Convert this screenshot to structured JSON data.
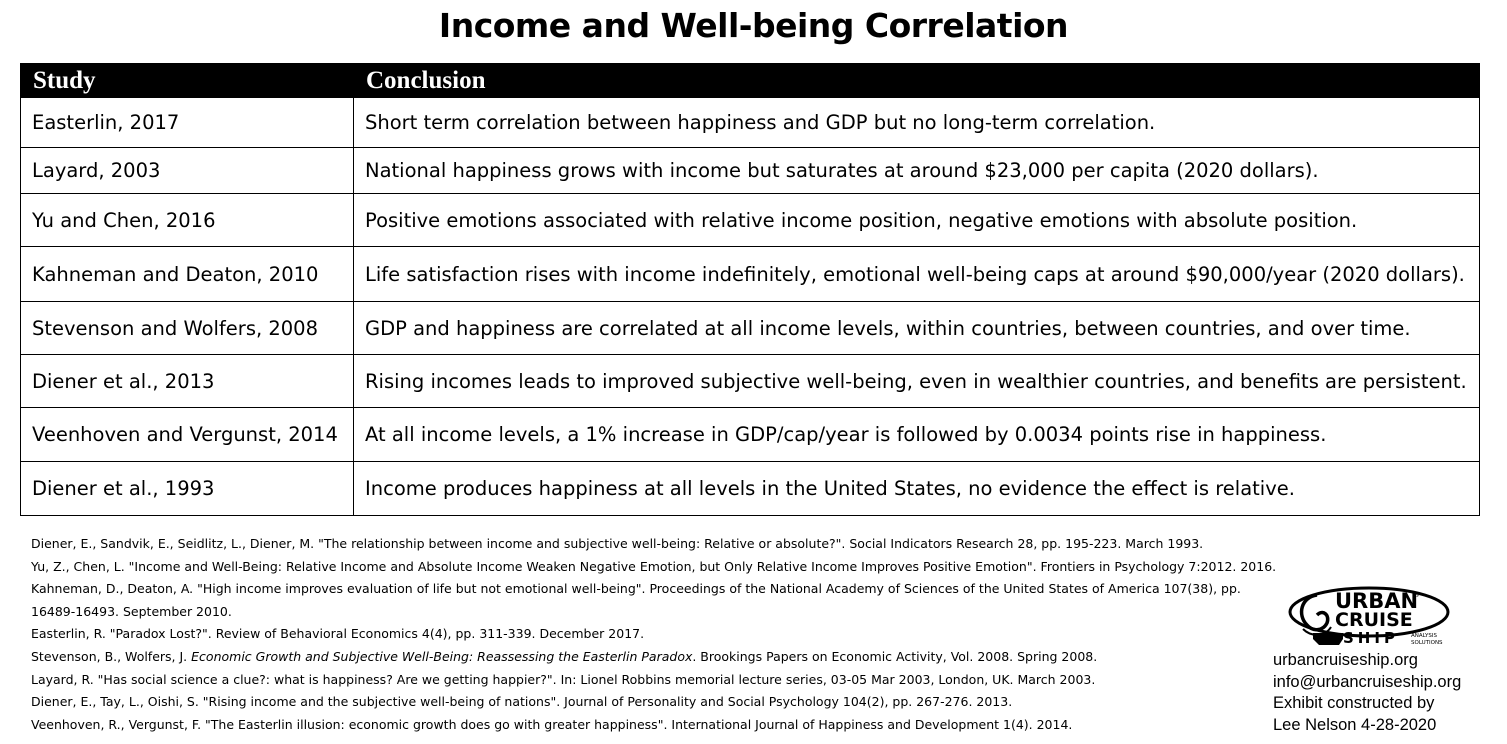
{
  "title": "Income and Well-being Correlation",
  "table": {
    "headers": [
      "Study",
      "Conclusion"
    ],
    "rows": [
      {
        "study": "Easterlin, 2017",
        "conclusion": "Short term correlation between happiness and GDP but no long-term correlation."
      },
      {
        "study": "Layard, 2003",
        "conclusion": "National happiness grows with income but saturates at around $23,000 per capita (2020 dollars)."
      },
      {
        "study": "Yu and Chen, 2016",
        "conclusion": "Positive emotions associated with relative income position, negative emotions with absolute position."
      },
      {
        "study": "Kahneman and Deaton, 2010",
        "conclusion": "Life satisfaction rises with income indefinitely, emotional well-being caps at around $90,000/year (2020 dollars)."
      },
      {
        "study": "Stevenson and Wolfers, 2008",
        "conclusion": "GDP and happiness are correlated at all income levels, within countries, between countries, and over time."
      },
      {
        "study": "Diener et al., 2013",
        "conclusion": "Rising incomes leads to improved subjective well-being, even in wealthier countries, and benefits are persistent."
      },
      {
        "study": "Veenhoven and Vergunst, 2014",
        "conclusion": "At all income levels, a 1% increase in GDP/cap/year is followed by 0.0034 points rise in happiness."
      },
      {
        "study": "Diener et al., 1993",
        "conclusion": "Income produces happiness at all levels in the United States, no evidence the effect is relative."
      }
    ]
  },
  "references": {
    "diener1993": "Diener, E., Sandvik, E., Seidlitz, L., Diener, M. \"The relationship between income and subjective well-being: Relative or absolute?\". Social Indicators Research 28, pp. 195-223. March 1993.",
    "yu2016": "Yu, Z., Chen, L. \"Income and Well-Being: Relative Income and Absolute Income Weaken Negative Emotion, but Only Relative Income Improves Positive Emotion\". Frontiers in Psychology 7:2012. 2016.",
    "kahneman2010": "Kahneman, D., Deaton, A. \"High income improves evaluation of life but not emotional well-being\". Proceedings of the National Academy of Sciences of the United States of America 107(38), pp. 16489-16493. September 2010.",
    "easterlin2017": "Easterlin, R. \"Paradox Lost?\". Review of Behavioral Economics 4(4), pp. 311-339. December 2017.",
    "stevenson_authors": "Stevenson, B., Wolfers, J.",
    "stevenson_title": "Economic Growth and Subjective Well-Being: Reassessing the Easterlin Paradox",
    "stevenson_rest": ". Brookings Papers on Economic Activity, Vol. 2008. Spring 2008.",
    "layard2003": "Layard, R. \"Has social science a clue?: what is happiness? Are we getting happier?\". In: Lionel Robbins memorial lecture series, 03-05 Mar 2003, London, UK. March 2003.",
    "diener2013": "Diener, E., Tay, L., Oishi, S. \"Rising income and the subjective well-being of nations\". Journal of Personality and Social Psychology 104(2), pp. 267-276. 2013.",
    "veenhoven2014": "Veenhoven, R., Vergunst, F. \"The Easterlin illusion: economic growth does go with greater happiness\". International Journal of Happiness and Development 1(4). 2014."
  },
  "logo": {
    "line1": "URBAN",
    "line2": "CRUISE",
    "line3": "SHIP",
    "tag1": "ANALYSIS",
    "tag2": "SOLUTIONS",
    "reg": "®"
  },
  "contact": {
    "website": "urbancruiseship.org",
    "email": "info@urbancruiseship.org",
    "constructed_line1": "Exhibit constructed by",
    "constructed_line2": "Lee Nelson 4-28-2020"
  }
}
